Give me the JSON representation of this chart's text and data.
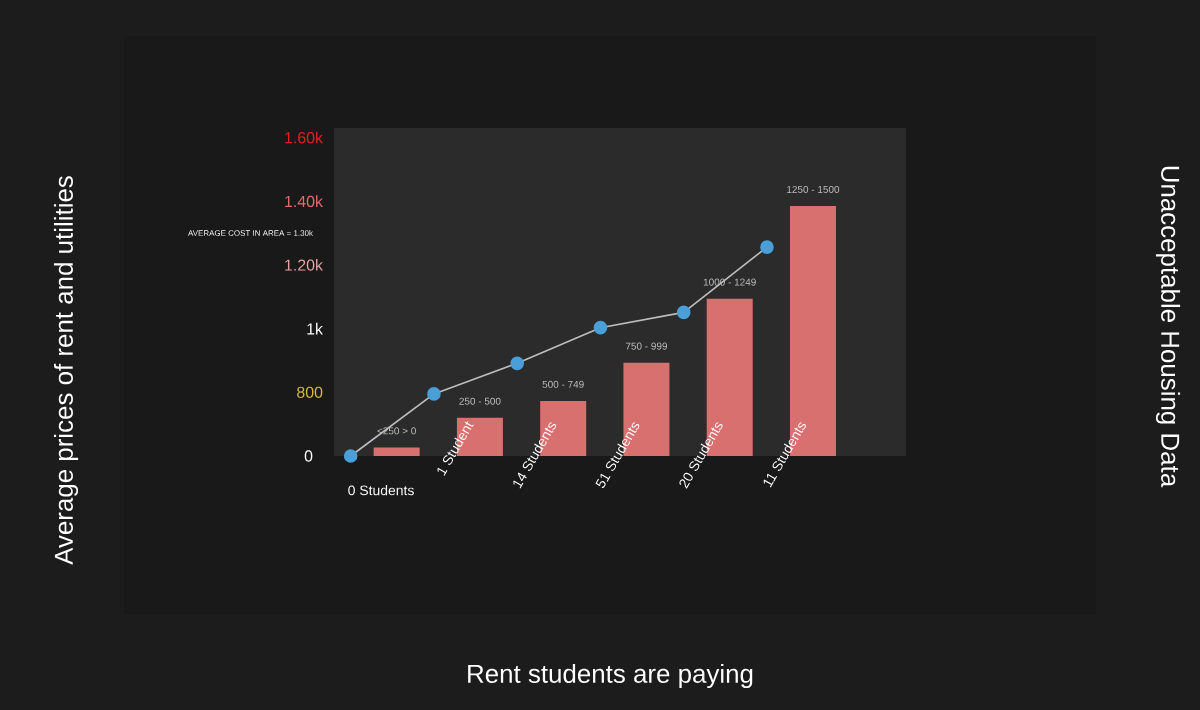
{
  "chart_data": {
    "type": "bar",
    "title": "Unacceptable Housing Data",
    "categories": [
      "0 Students",
      "1 Student",
      "14 Students",
      "51 Students",
      "20 Students",
      "11 Students"
    ],
    "ylim": [
      600,
      1630
    ],
    "yticks": [
      {
        "value": 600,
        "label": null
      },
      800,
      {
        "value": 1000,
        "label": "1k"
      },
      {
        "value": 1200,
        "label": "1.20k"
      },
      {
        "value": 1400,
        "label": "1.40k"
      },
      {
        "value": 1600,
        "label": "1.60k"
      }
    ],
    "series": [
      {
        "color": "#d87070",
        "values": [
          627,
          720,
          773,
          893,
          1094,
          1385
        ]
      },
      {
        "type": "line",
        "color": "#4a9fd8",
        "marker": "circle",
        "values": [
          600,
          795,
          891,
          1003,
          1051,
          1256
        ]
      }
    ],
    "annotations": [
      "Average prices of rent and utilities",
      "Rent students are paying",
      "0",
      "AVERAGE COST IN AREA = 1.30k",
      {
        "text": "<250 > 0",
        "x": "0 Students",
        "y": 627
      },
      {
        "text": "250 - 500",
        "x": "1 Student",
        "y": 720
      },
      {
        "text": "500 - 749",
        "x": "14 Students",
        "y": 773
      },
      {
        "text": "750 - 999",
        "x": "51 Students",
        "y": 893
      },
      {
        "text": "1000 - 1249",
        "x": "20 Students",
        "y": 1094
      },
      {
        "text": "1250 - 1500",
        "x": "11 Students",
        "y": 1385
      }
    ]
  }
}
